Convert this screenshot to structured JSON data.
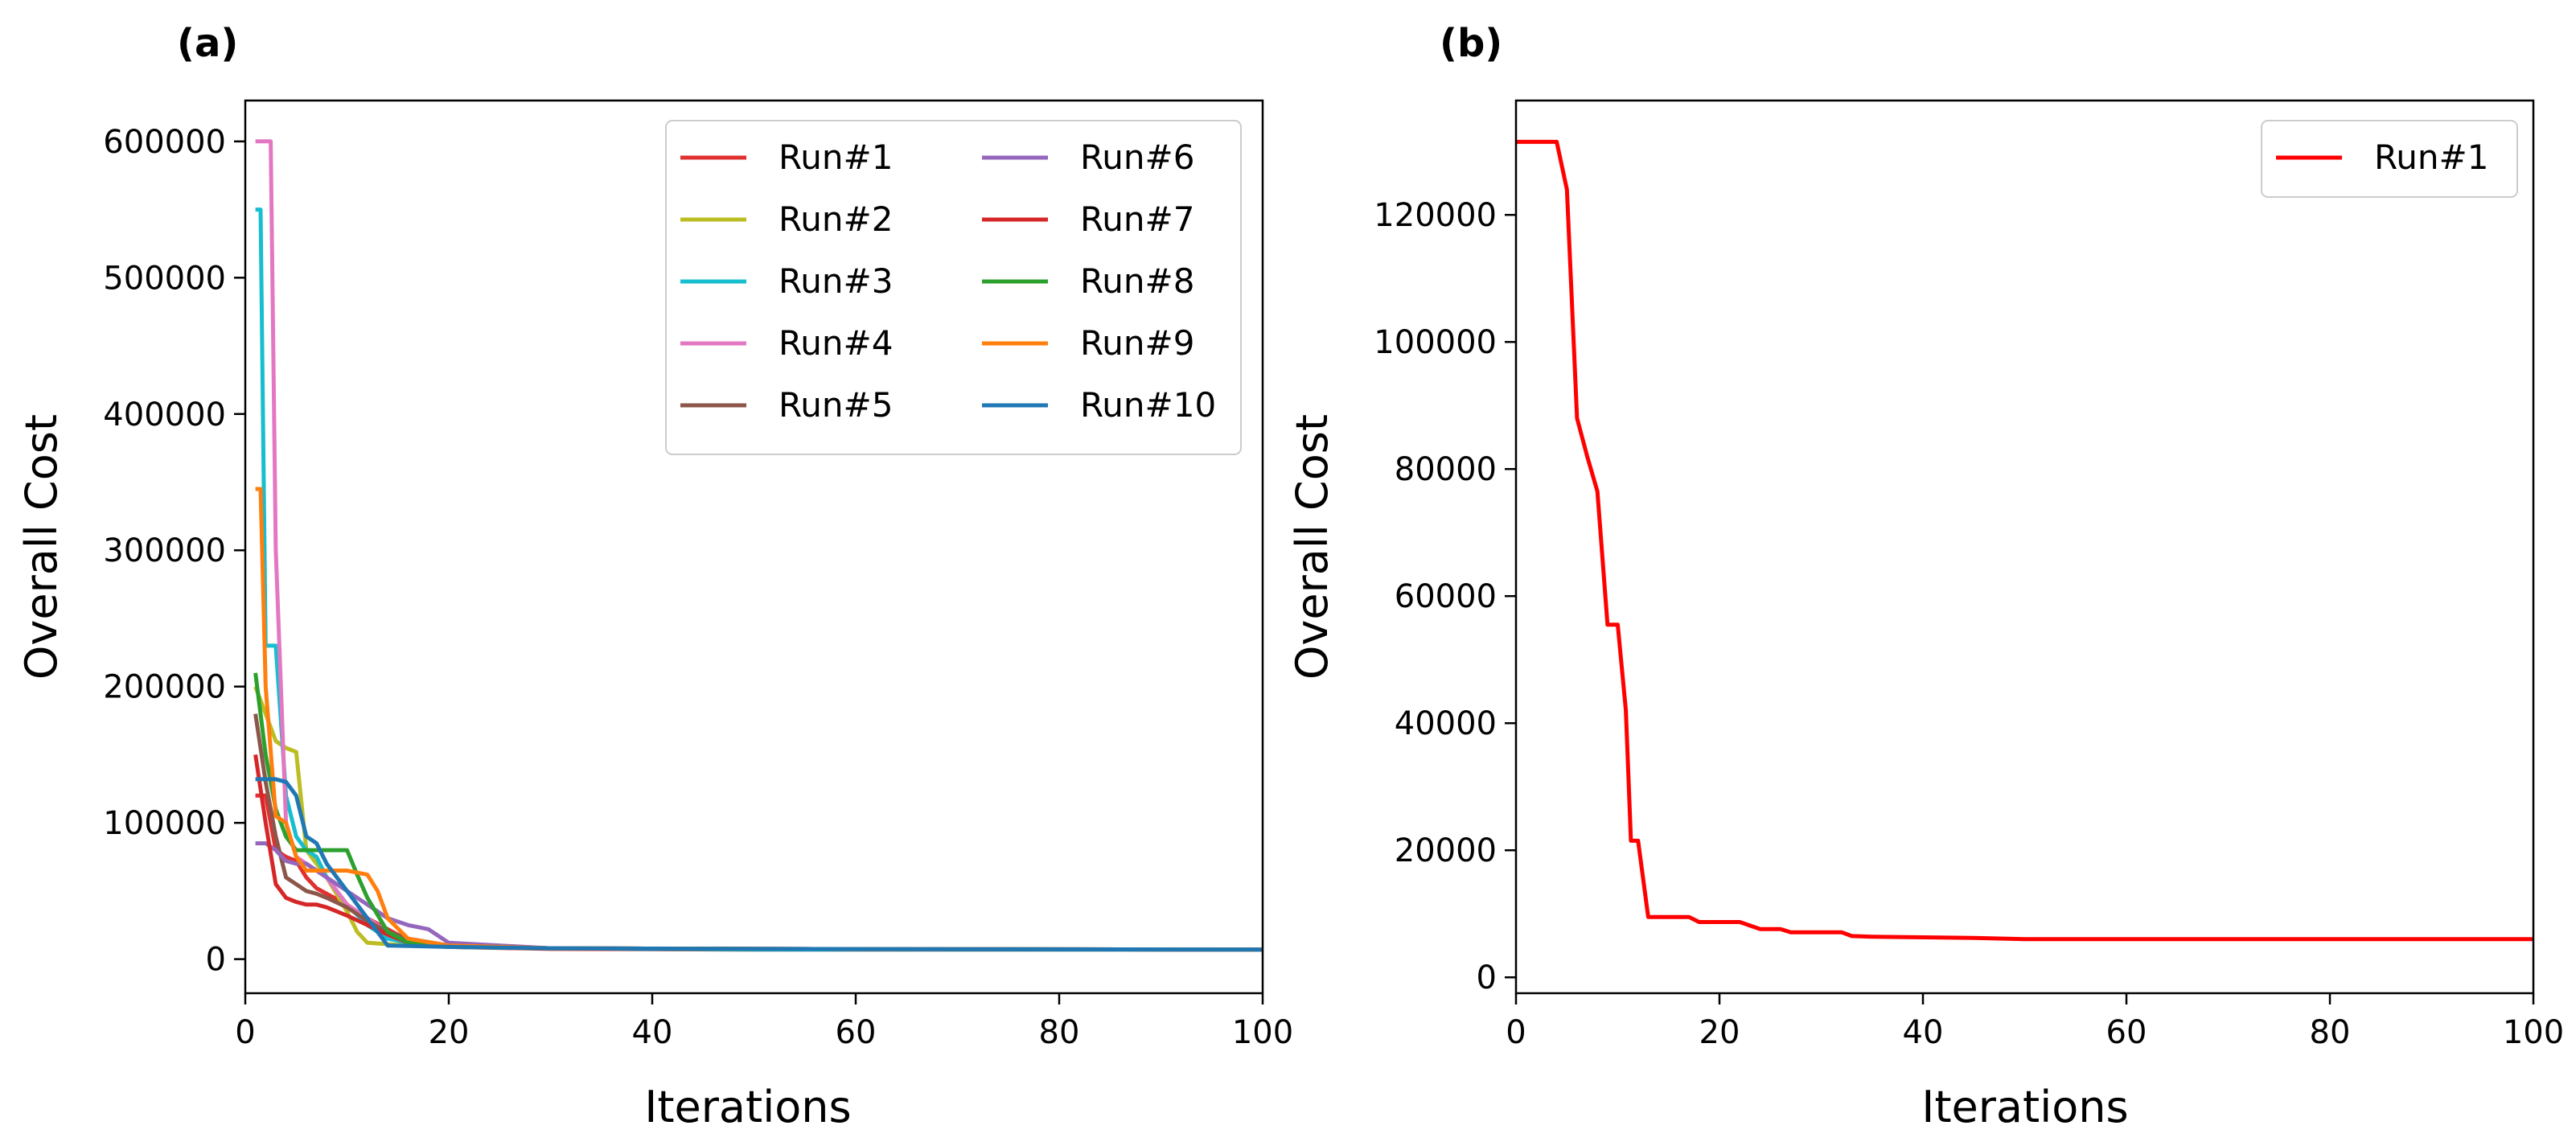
{
  "chart_data": [
    {
      "panel_label": "(a)",
      "type": "line",
      "xlabel": "Iterations",
      "ylabel": "Overall Cost",
      "xlim": [
        0,
        100
      ],
      "ylim": [
        -25000,
        630000
      ],
      "xticks": [
        0,
        20,
        40,
        60,
        80,
        100
      ],
      "yticks": [
        0,
        100000,
        200000,
        300000,
        400000,
        500000,
        600000
      ],
      "grid": false,
      "legend": "top-right, two columns",
      "series": [
        {
          "name": "Run#1",
          "color": "#e03030",
          "x": [
            1,
            2,
            3,
            4,
            5,
            6,
            7,
            8,
            10,
            12,
            14,
            16,
            20,
            30,
            50,
            100
          ],
          "y": [
            120000,
            120000,
            80000,
            75000,
            72000,
            60000,
            52000,
            48000,
            40000,
            30000,
            22000,
            14000,
            9000,
            7500,
            7000,
            7000
          ]
        },
        {
          "name": "Run#2",
          "color": "#bcbd22",
          "x": [
            1,
            2,
            3,
            4,
            5,
            6,
            7,
            8,
            10,
            11,
            12,
            14,
            16,
            20,
            30,
            50,
            100
          ],
          "y": [
            200000,
            180000,
            160000,
            155000,
            152000,
            80000,
            70000,
            60000,
            35000,
            20000,
            12000,
            11000,
            10000,
            9000,
            8000,
            7500,
            7000
          ]
        },
        {
          "name": "Run#3",
          "color": "#17becf",
          "x": [
            1,
            1.5,
            2,
            3,
            4,
            5,
            6,
            7,
            8,
            10,
            12,
            14,
            16,
            20,
            30,
            50,
            100
          ],
          "y": [
            550000,
            550000,
            230000,
            230000,
            120000,
            90000,
            80000,
            75000,
            60000,
            40000,
            25000,
            15000,
            12000,
            10000,
            8000,
            7000,
            7000
          ]
        },
        {
          "name": "Run#4",
          "color": "#e377c2",
          "x": [
            1,
            2,
            2.5,
            3,
            4,
            5,
            6,
            8,
            10,
            12,
            14,
            16,
            20,
            30,
            50,
            100
          ],
          "y": [
            600000,
            600000,
            600000,
            300000,
            100000,
            75000,
            70000,
            60000,
            40000,
            30000,
            20000,
            15000,
            10000,
            8000,
            7500,
            7000
          ]
        },
        {
          "name": "Run#5",
          "color": "#8c564b",
          "x": [
            1,
            2,
            3,
            4,
            5,
            6,
            7,
            8,
            10,
            12,
            14,
            16,
            20,
            30,
            50,
            100
          ],
          "y": [
            180000,
            130000,
            90000,
            60000,
            55000,
            50000,
            48000,
            45000,
            38000,
            28000,
            20000,
            15000,
            10000,
            8000,
            7500,
            7000
          ]
        },
        {
          "name": "Run#6",
          "color": "#9467bd",
          "x": [
            1,
            2,
            3,
            4,
            5,
            6,
            7,
            8,
            10,
            12,
            14,
            16,
            18,
            20,
            30,
            50,
            100
          ],
          "y": [
            85000,
            85000,
            80000,
            72000,
            70000,
            70000,
            65000,
            60000,
            50000,
            40000,
            30000,
            25000,
            22000,
            12000,
            8000,
            7500,
            7000
          ]
        },
        {
          "name": "Run#7",
          "color": "#d62728",
          "x": [
            1,
            2,
            3,
            4,
            5,
            6,
            7,
            8,
            10,
            12,
            14,
            16,
            20,
            30,
            50,
            100
          ],
          "y": [
            150000,
            100000,
            55000,
            45000,
            42000,
            40000,
            40000,
            38000,
            32000,
            25000,
            18000,
            12000,
            10000,
            8000,
            7500,
            7000
          ]
        },
        {
          "name": "Run#8",
          "color": "#2ca02c",
          "x": [
            1,
            2,
            3,
            4,
            5,
            6,
            7,
            8,
            10,
            11,
            12,
            14,
            16,
            20,
            30,
            50,
            100
          ],
          "y": [
            210000,
            150000,
            110000,
            90000,
            80000,
            80000,
            80000,
            80000,
            80000,
            62000,
            45000,
            20000,
            12000,
            9000,
            8000,
            7500,
            7000
          ]
        },
        {
          "name": "Run#9",
          "color": "#ff7f0e",
          "x": [
            1,
            1.5,
            2,
            3,
            4,
            5,
            6,
            8,
            10,
            12,
            13,
            14,
            16,
            20,
            30,
            50,
            100
          ],
          "y": [
            345000,
            345000,
            200000,
            105000,
            100000,
            75000,
            65000,
            65000,
            65000,
            62000,
            50000,
            30000,
            15000,
            10000,
            8000,
            7500,
            7000
          ]
        },
        {
          "name": "Run#10",
          "color": "#1f77b4",
          "x": [
            1,
            2,
            3,
            4,
            5,
            6,
            7,
            8,
            10,
            12,
            14,
            20,
            30,
            50,
            100
          ],
          "y": [
            132000,
            132000,
            132000,
            130000,
            120000,
            90000,
            85000,
            70000,
            50000,
            30000,
            10000,
            9000,
            8000,
            7500,
            7000
          ]
        }
      ]
    },
    {
      "panel_label": "(b)",
      "type": "line",
      "xlabel": "Iterations",
      "ylabel": "Overall Cost",
      "xlim": [
        0,
        100
      ],
      "ylim": [
        -2500,
        138000
      ],
      "xticks": [
        0,
        20,
        40,
        60,
        80,
        100
      ],
      "yticks": [
        0,
        20000,
        40000,
        60000,
        80000,
        100000,
        120000
      ],
      "grid": false,
      "legend": "top-right",
      "series": [
        {
          "name": "Run#1",
          "color": "#ff0000",
          "x": [
            0,
            3,
            4,
            5,
            6,
            7,
            8,
            9,
            10,
            10.8,
            11.3,
            12,
            13,
            14,
            17,
            18,
            22,
            24,
            26,
            27,
            32,
            33,
            35,
            45,
            50,
            60,
            100
          ],
          "y": [
            131500,
            131500,
            131500,
            124000,
            88000,
            82000,
            76500,
            55500,
            55500,
            42000,
            21500,
            21500,
            9500,
            9500,
            9500,
            8700,
            8700,
            7600,
            7600,
            7100,
            7100,
            6500,
            6400,
            6200,
            6000,
            6000,
            6000
          ]
        }
      ]
    }
  ]
}
